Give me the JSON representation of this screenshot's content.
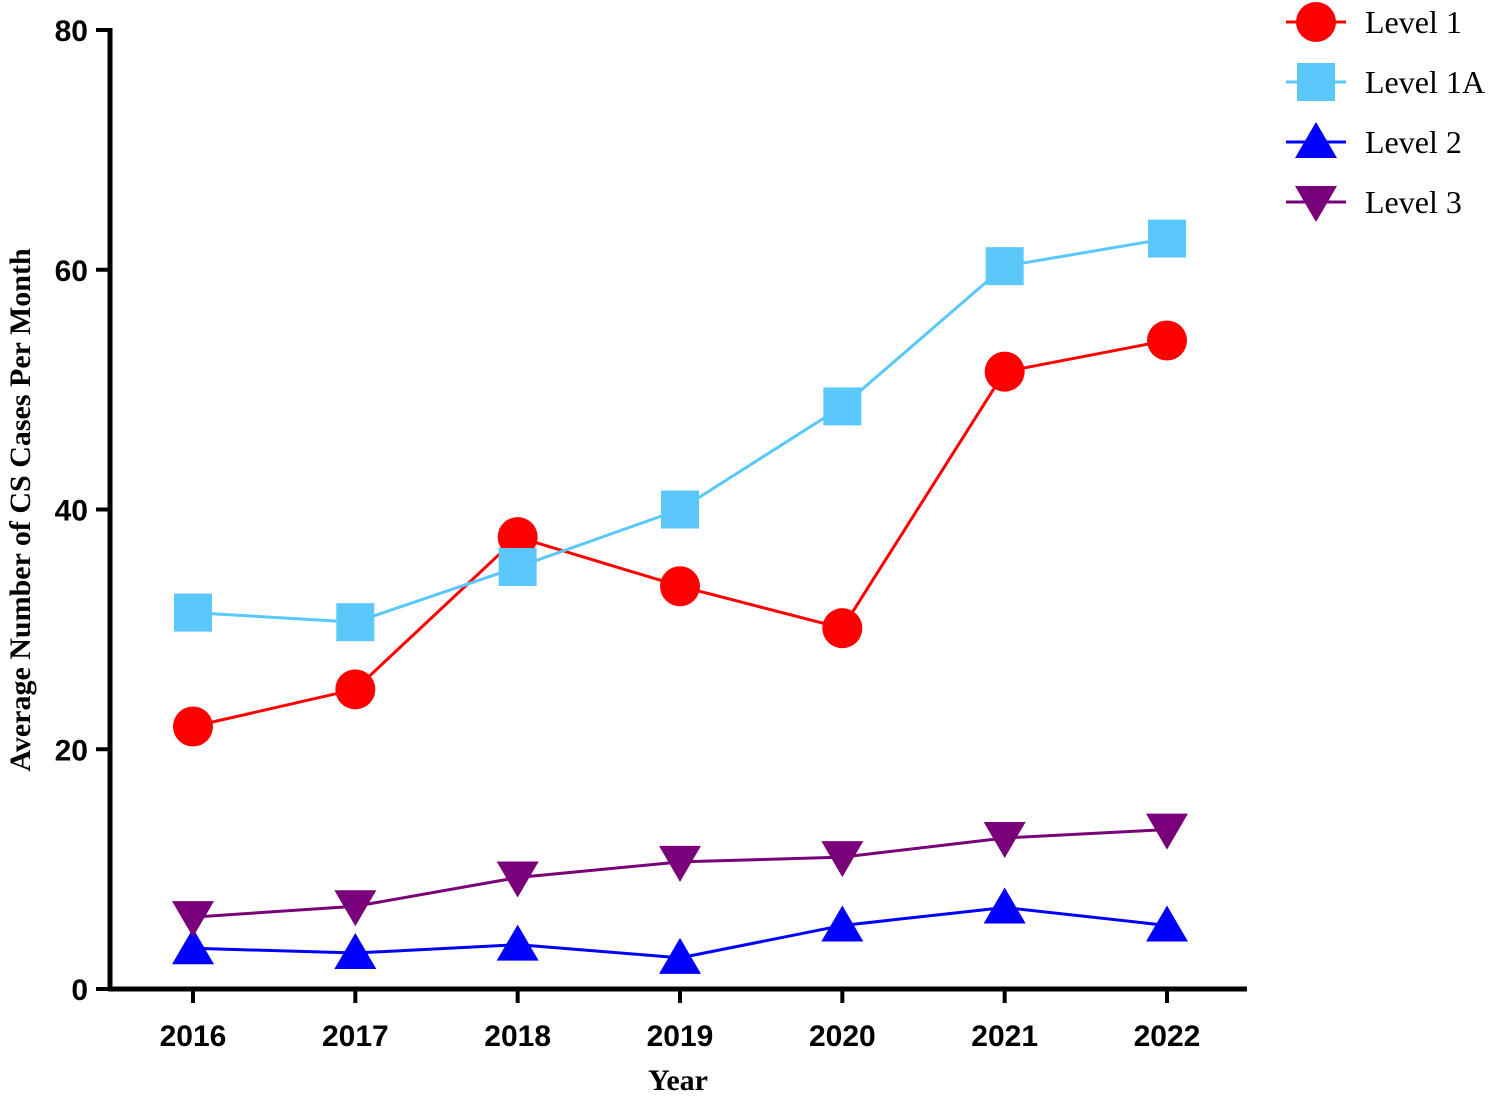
{
  "chart_data": {
    "type": "line",
    "x_label": "Year",
    "y_label": "Average Number of CS Cases Per Month",
    "categories": [
      "2016",
      "2017",
      "2018",
      "2019",
      "2020",
      "2021",
      "2022"
    ],
    "series": [
      {
        "name": "Level 1",
        "color": "#ff0000",
        "marker": "circle",
        "values": [
          21.9,
          25.0,
          37.7,
          33.6,
          30.1,
          51.5,
          54.1
        ]
      },
      {
        "name": "Level 1A",
        "color": "#5ac8fa",
        "marker": "square",
        "values": [
          31.4,
          30.6,
          35.2,
          40.0,
          48.6,
          60.3,
          62.6
        ]
      },
      {
        "name": "Level 2",
        "color": "#0000ff",
        "marker": "triangle-up",
        "values": [
          3.4,
          3.0,
          3.7,
          2.6,
          5.3,
          6.8,
          5.3
        ]
      },
      {
        "name": "Level 3",
        "color": "#7a007a",
        "marker": "triangle-down",
        "values": [
          6.0,
          6.9,
          9.3,
          10.6,
          11.0,
          12.6,
          13.3
        ]
      }
    ],
    "ylim": [
      0,
      80
    ],
    "yticks": [
      0,
      20,
      40,
      60,
      80
    ],
    "legend": "top-right"
  }
}
